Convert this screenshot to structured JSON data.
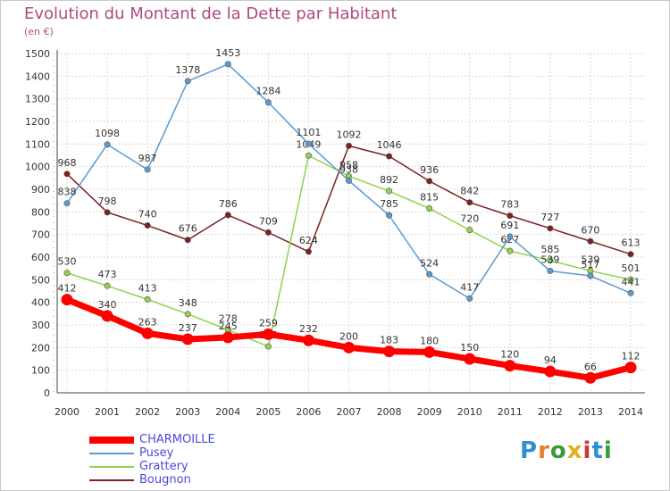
{
  "title": "Evolution du Montant de la Dette par Habitant",
  "subtitle": "(en €)",
  "logo": {
    "letters": [
      {
        "ch": "P",
        "color": "#2f8fd6"
      },
      {
        "ch": "r",
        "color": "#e0822a"
      },
      {
        "ch": "o",
        "color": "#3a9a3a"
      },
      {
        "ch": "x",
        "color": "#e0b020"
      },
      {
        "ch": "i",
        "color": "#c83a3a"
      },
      {
        "ch": "t",
        "color": "#2f8fd6"
      },
      {
        "ch": "i",
        "color": "#3a9a3a"
      }
    ]
  },
  "colors": {
    "CHARMOILLE": "#ff0000",
    "Pusey": "#5a9bd0",
    "Grattery": "#8fd44a",
    "Bougnon": "#7a2222",
    "text": "#333333",
    "grid": "#d8d8d8",
    "axis": "#444444"
  },
  "chart_data": {
    "type": "line",
    "title": "Evolution du Montant de la Dette par Habitant",
    "subtitle": "(en €)",
    "x": [
      2000,
      2001,
      2002,
      2003,
      2004,
      2005,
      2006,
      2007,
      2008,
      2009,
      2010,
      2011,
      2012,
      2013,
      2014
    ],
    "ylim": [
      0,
      1500
    ],
    "yticks": [
      0,
      100,
      200,
      300,
      400,
      500,
      600,
      700,
      800,
      900,
      1000,
      1100,
      1200,
      1300,
      1400,
      1500
    ],
    "grid": true,
    "legend": "bottom-left",
    "series": [
      {
        "name": "Bougnon",
        "values": [
          968,
          798,
          740,
          676,
          786,
          709,
          624,
          1092,
          1046,
          936,
          842,
          783,
          727,
          670,
          613
        ]
      },
      {
        "name": "Grattery",
        "values": [
          530,
          473,
          413,
          348,
          278,
          205,
          1049,
          958,
          892,
          815,
          720,
          627,
          585,
          539,
          501
        ]
      },
      {
        "name": "Pusey",
        "values": [
          838,
          1098,
          987,
          1378,
          1453,
          1284,
          1101,
          938,
          785,
          524,
          417,
          691,
          539,
          517,
          441
        ]
      },
      {
        "name": "CHARMOILLE",
        "values": [
          412,
          340,
          263,
          237,
          245,
          259,
          232,
          200,
          183,
          180,
          150,
          120,
          94,
          66,
          112
        ]
      }
    ],
    "legend_order": [
      "CHARMOILLE",
      "Pusey",
      "Grattery",
      "Bougnon"
    ]
  }
}
